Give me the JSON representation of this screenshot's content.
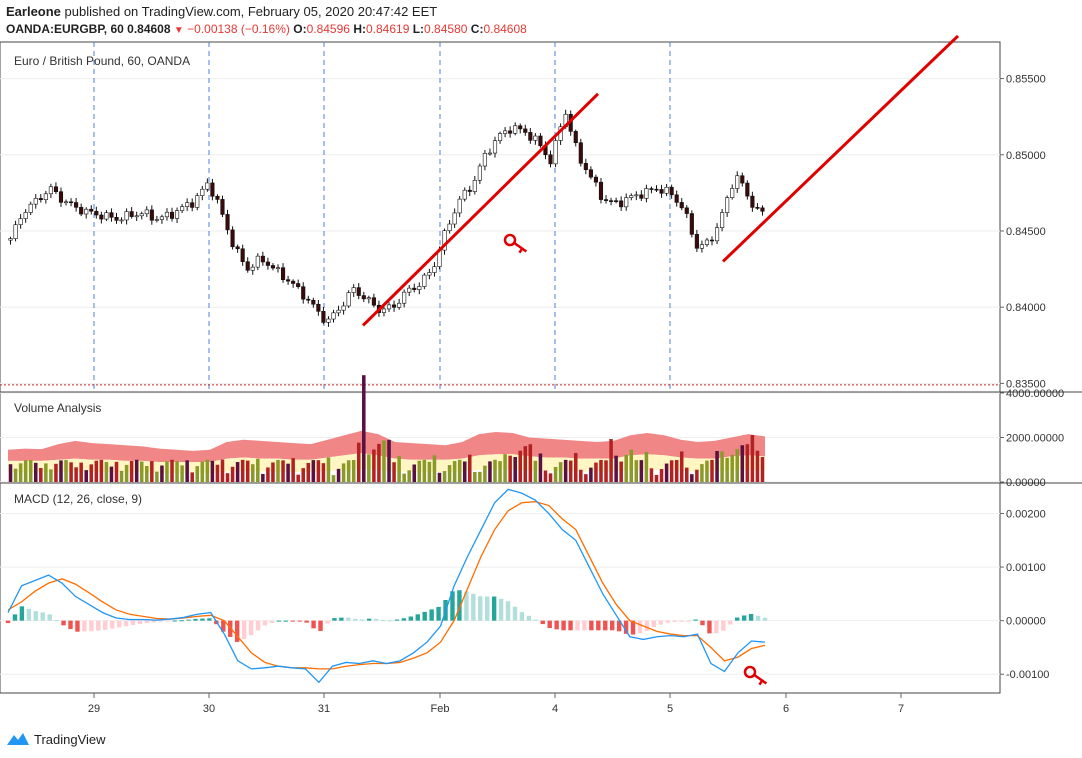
{
  "header": {
    "author": "Earleone",
    "published": "published on TradingView.com, February 05, 2020 20:47:42 EET",
    "symbol": "OANDA:EURGBP, 60",
    "last": "0.84608",
    "change": "−0.00138 (−0.16%)",
    "o_label": "O:",
    "o_value": "0.84596",
    "h_label": "H:",
    "h_value": "0.84619",
    "l_label": "L:",
    "l_value": "0.84580",
    "c_label": "C:",
    "c_value": "0.84608"
  },
  "footer": {
    "brand": "TradingView"
  },
  "colors": {
    "up": "#26a69a",
    "down": "#ef5350",
    "trend": "#e00000",
    "macd": "#2196f3",
    "signal": "#ff6d00"
  },
  "chart_data": [
    {
      "type": "candlestick",
      "title": "Euro / British Pound, 60, OANDA",
      "ylim": [
        0.8345,
        0.8574
      ],
      "y_ticks": [
        "0.85500",
        "0.85000",
        "0.84500",
        "0.84000",
        "0.83500"
      ],
      "y_tick_values": [
        0.855,
        0.85,
        0.845,
        0.84,
        0.835
      ],
      "x_ticks": [
        "29",
        "30",
        "31",
        "Feb",
        "4",
        "5",
        "6",
        "7"
      ],
      "close_path": [
        0.8445,
        0.8463,
        0.847,
        0.8478,
        0.847,
        0.8465,
        0.8462,
        0.846,
        0.8458,
        0.846,
        0.8462,
        0.8458,
        0.846,
        0.8465,
        0.847,
        0.8482,
        0.8462,
        0.8438,
        0.8425,
        0.8432,
        0.8425,
        0.8418,
        0.841,
        0.84,
        0.839,
        0.84,
        0.8412,
        0.8405,
        0.8398,
        0.84,
        0.841,
        0.8415,
        0.8425,
        0.845,
        0.847,
        0.848,
        0.85,
        0.8512,
        0.8518,
        0.8515,
        0.8508,
        0.8495,
        0.853,
        0.85,
        0.8485,
        0.847,
        0.8468,
        0.8472,
        0.8475,
        0.8478,
        0.8475,
        0.8465,
        0.844,
        0.8442,
        0.8462,
        0.8488,
        0.847,
        0.8461
      ],
      "trendlines": [
        {
          "from": [
            0.8388
          ],
          "to": [
            0.854
          ]
        },
        {
          "from": [
            0.843
          ],
          "to": [
            0.8578
          ]
        }
      ],
      "price_line": 0.8349
    },
    {
      "type": "bar",
      "title": "Volume Analysis",
      "ylim": [
        0,
        4000
      ],
      "y_ticks": [
        "4000.00000",
        "2000.00000",
        "0.00000"
      ],
      "y_tick_values": [
        4000,
        2000,
        0
      ],
      "band_upper": [
        1450,
        1500,
        1480,
        1700,
        1850,
        1750,
        1700,
        1650,
        1600,
        1500,
        1450,
        1400,
        1450,
        1800,
        1900,
        1850,
        1800,
        1750,
        1700,
        1900,
        2100,
        2300,
        2150,
        1800,
        1750,
        1700,
        1650,
        1800,
        2150,
        2250,
        2200,
        2000,
        1950,
        1900,
        1850,
        1800,
        1850,
        2100,
        2200,
        2100,
        1900,
        1800,
        1850,
        2000,
        2150,
        2050
      ],
      "band_lower": [
        950,
        950,
        950,
        1000,
        1050,
        1000,
        1000,
        950,
        950,
        900,
        900,
        900,
        900,
        1050,
        1100,
        1050,
        1050,
        1000,
        1000,
        1100,
        1200,
        1300,
        1200,
        1050,
        1000,
        1000,
        1000,
        1050,
        1200,
        1250,
        1250,
        1150,
        1100,
        1100,
        1050,
        1050,
        1050,
        1200,
        1250,
        1200,
        1100,
        1050,
        1050,
        1150,
        1200,
        1150
      ]
    },
    {
      "type": "line",
      "title": "MACD (12, 26, close, 9)",
      "ylim": [
        -0.00135,
        0.00255
      ],
      "y_ticks": [
        "0.00200",
        "0.00100",
        "0.00000",
        "-0.00100"
      ],
      "y_tick_values": [
        0.002,
        0.001,
        0.0,
        -0.001
      ],
      "series": [
        {
          "values": [
            0.00015,
            0.00065,
            0.00075,
            0.00085,
            0.0007,
            0.00045,
            0.0003,
            0.00015,
            5e-05,
            2e-05,
            2e-05,
            1e-05,
            3e-05,
            6e-05,
            0.00012,
            0.00015,
            -0.00025,
            -0.00075,
            -0.0009,
            -0.00088,
            -0.00085,
            -0.00088,
            -0.0009,
            -0.00115,
            -0.00085,
            -0.00078,
            -0.0008,
            -0.00075,
            -0.0008,
            -0.00075,
            -0.0006,
            -0.0004,
            -0.0001,
            0.00065,
            0.0012,
            0.0017,
            0.0022,
            0.00245,
            0.00238,
            0.00225,
            0.002,
            0.0017,
            0.0015,
            0.001,
            0.0005,
            0.0001,
            -0.0003,
            -0.00035,
            -0.0003,
            -0.00028,
            -0.0003,
            -0.00025,
            -0.0008,
            -0.00095,
            -0.0006,
            -0.00038,
            -0.0004
          ]
        },
        {
          "values": [
            0.0002,
            0.00035,
            0.00055,
            0.0007,
            0.00078,
            0.00068,
            0.00052,
            0.00035,
            0.0002,
            0.00012,
            8e-05,
            4e-05,
            3e-05,
            5e-05,
            8e-05,
            0.0001,
            0.0,
            -0.0003,
            -0.0006,
            -0.00078,
            -0.00085,
            -0.00088,
            -0.00088,
            -0.0009,
            -0.0009,
            -0.00085,
            -0.00082,
            -0.0008,
            -0.0008,
            -0.00078,
            -0.0007,
            -0.0006,
            -0.0004,
            0.0,
            0.0006,
            0.0012,
            0.0017,
            0.00205,
            0.0022,
            0.00222,
            0.00215,
            0.0019,
            0.0017,
            0.0012,
            0.0007,
            0.0003,
            0.0,
            -0.0001,
            -0.0002,
            -0.00025,
            -0.00028,
            -0.00028,
            -0.0005,
            -0.00075,
            -0.00068,
            -0.00052,
            -0.00046
          ]
        }
      ]
    }
  ]
}
